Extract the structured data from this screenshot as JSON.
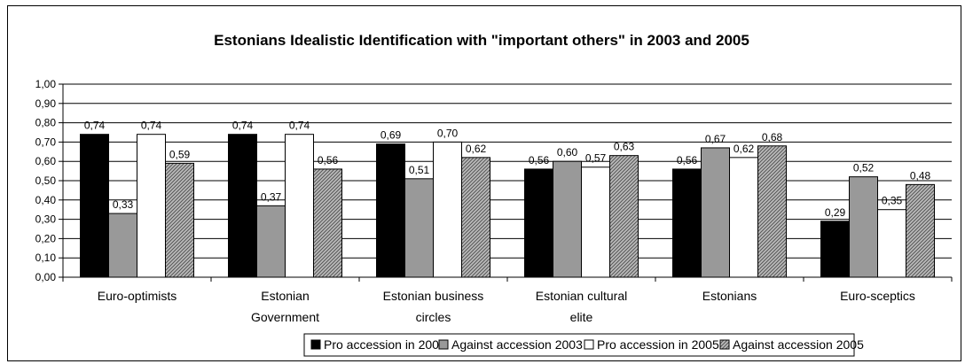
{
  "chart_data": {
    "type": "bar",
    "title": "Estonians Idealistic Identification with \"important others\" in 2003 and 2005",
    "xlabel": "",
    "ylabel": "",
    "ylim": [
      0,
      1
    ],
    "yticks": [
      "0,00",
      "0,10",
      "0,20",
      "0,30",
      "0,40",
      "0,50",
      "0,60",
      "0,70",
      "0,80",
      "0,90",
      "1,00"
    ],
    "grid": true,
    "legend_position": "bottom",
    "categories": [
      [
        "Euro-optimists"
      ],
      [
        "Estonian",
        "Government"
      ],
      [
        "Estonian business",
        "circles"
      ],
      [
        "Estonian cultural",
        "elite"
      ],
      [
        "Estonians"
      ],
      [
        "Euro-sceptics"
      ]
    ],
    "series": [
      {
        "name": "Pro accession in 2003",
        "style": "black",
        "values": [
          0.74,
          0.74,
          0.69,
          0.56,
          0.56,
          0.29
        ],
        "labels": [
          "0,74",
          "0,74",
          "0,69",
          "0,56",
          "0,56",
          "0,29"
        ]
      },
      {
        "name": "Against accession 2003",
        "style": "gray",
        "values": [
          0.33,
          0.37,
          0.51,
          0.6,
          0.67,
          0.52
        ],
        "labels": [
          "0,33",
          "0,37",
          "0,51",
          "0,60",
          "0,67",
          "0,52"
        ]
      },
      {
        "name": "Pro accession in 2005",
        "style": "white",
        "values": [
          0.74,
          0.74,
          0.7,
          0.57,
          0.62,
          0.35
        ],
        "labels": [
          "0,74",
          "0,74",
          "0,70",
          "0,57",
          "0,62",
          "0,35"
        ]
      },
      {
        "name": "Against accession 2005",
        "style": "hatch",
        "values": [
          0.59,
          0.56,
          0.62,
          0.63,
          0.68,
          0.48
        ],
        "labels": [
          "0,59",
          "0,56",
          "0,62",
          "0,63",
          "0,68",
          "0,48"
        ]
      }
    ],
    "colors": {
      "black": "#000000",
      "gray": "#999999",
      "white": "#ffffff",
      "hatch_bg": "#bbbbbb",
      "hatch_line": "#555555",
      "grid": "#000000"
    }
  }
}
